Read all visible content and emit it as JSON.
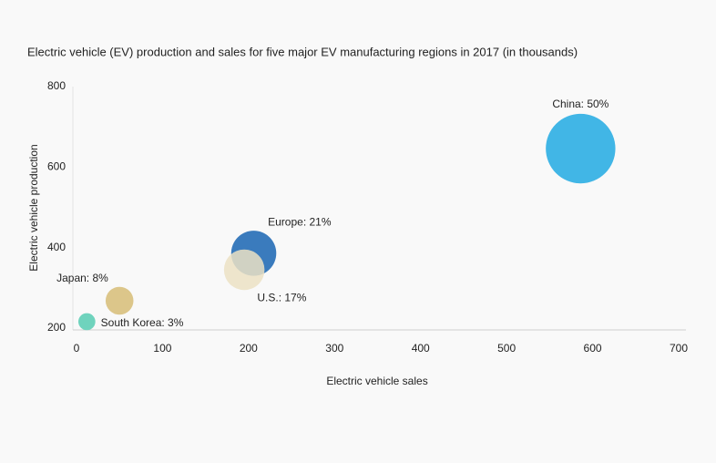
{
  "chart_data": {
    "type": "bubble",
    "title": "Electric vehicle (EV) production and sales for five major EV manufacturing regions in 2017 (in thousands)",
    "x_label": "Electric vehicle sales",
    "y_label": "Electric vehicle production",
    "labels": [
      "China: 50%",
      "Europe: 21%",
      "U.S.: 17%",
      "Japan: 8%",
      "South Korea: 3%"
    ],
    "x": [
      586,
      206,
      195,
      50,
      12
    ],
    "values": [
      646,
      386,
      345,
      268,
      216
    ],
    "sizes": [
      50,
      21,
      17,
      8,
      3
    ],
    "colors": [
      "#41b6e6",
      "#3a7bbd",
      "#ece2c4",
      "#dcc68a",
      "#6fd3bd"
    ],
    "xlim": [
      0,
      700
    ],
    "xticks": [
      0,
      100,
      200,
      300,
      400,
      500,
      600,
      700
    ],
    "ylim": [
      200,
      800
    ],
    "yticks": [
      200,
      400,
      600,
      800
    ]
  }
}
